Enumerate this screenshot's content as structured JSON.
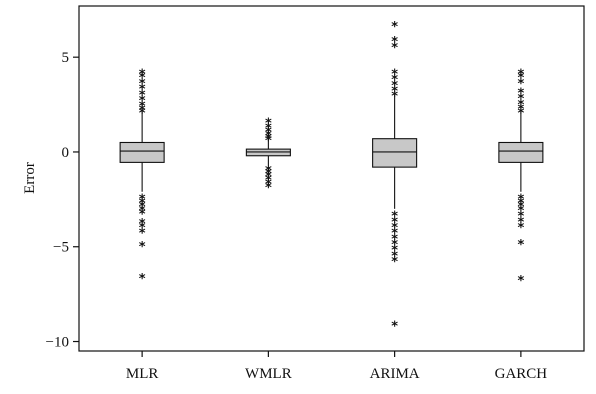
{
  "chart_data": {
    "type": "boxplot",
    "title": "",
    "xlabel": "",
    "ylabel": "Error",
    "ylim": [
      -10.5,
      7.7
    ],
    "yticks": [
      5,
      0,
      -5,
      -10
    ],
    "ytick_labels": [
      "5",
      "0",
      "−5",
      "−10"
    ],
    "grid": false,
    "legend": "none",
    "box_fill": "#c8c8c8",
    "outlier_marker": "*",
    "categories": [
      "MLR",
      "WMLR",
      "ARIMA",
      "GARCH"
    ],
    "boxes": [
      {
        "name": "MLR",
        "whisker_low": -2.1,
        "q1": -0.55,
        "median": 0.05,
        "q3": 0.5,
        "whisker_high": 2.1,
        "outliers": [
          4.3,
          4.1,
          3.8,
          3.5,
          3.2,
          2.9,
          2.6,
          2.4,
          2.25,
          -2.3,
          -2.5,
          -2.7,
          -2.9,
          -3.1,
          -3.6,
          -3.8,
          -4.1,
          -4.8,
          -6.5
        ]
      },
      {
        "name": "WMLR",
        "whisker_low": -0.7,
        "q1": -0.2,
        "median": 0.0,
        "q3": 0.15,
        "whisker_high": 0.7,
        "outliers": [
          1.7,
          1.45,
          1.25,
          1.05,
          0.9,
          0.8,
          -0.8,
          -0.95,
          -1.1,
          -1.3,
          -1.5,
          -1.7
        ]
      },
      {
        "name": "ARIMA",
        "whisker_low": -3.0,
        "q1": -0.8,
        "median": 0.0,
        "q3": 0.7,
        "whisker_high": 3.0,
        "outliers": [
          6.8,
          6.0,
          5.7,
          4.3,
          4.0,
          3.7,
          3.4,
          3.15,
          -3.2,
          -3.5,
          -3.8,
          -4.1,
          -4.4,
          -4.7,
          -5.0,
          -5.3,
          -5.6,
          -9.0
        ]
      },
      {
        "name": "GARCH",
        "whisker_low": -2.1,
        "q1": -0.55,
        "median": 0.05,
        "q3": 0.5,
        "whisker_high": 2.1,
        "outliers": [
          4.3,
          4.1,
          3.8,
          3.3,
          3.0,
          2.7,
          2.45,
          2.25,
          -2.3,
          -2.5,
          -2.7,
          -2.9,
          -3.2,
          -3.5,
          -3.8,
          -4.7,
          -6.6
        ]
      }
    ]
  }
}
